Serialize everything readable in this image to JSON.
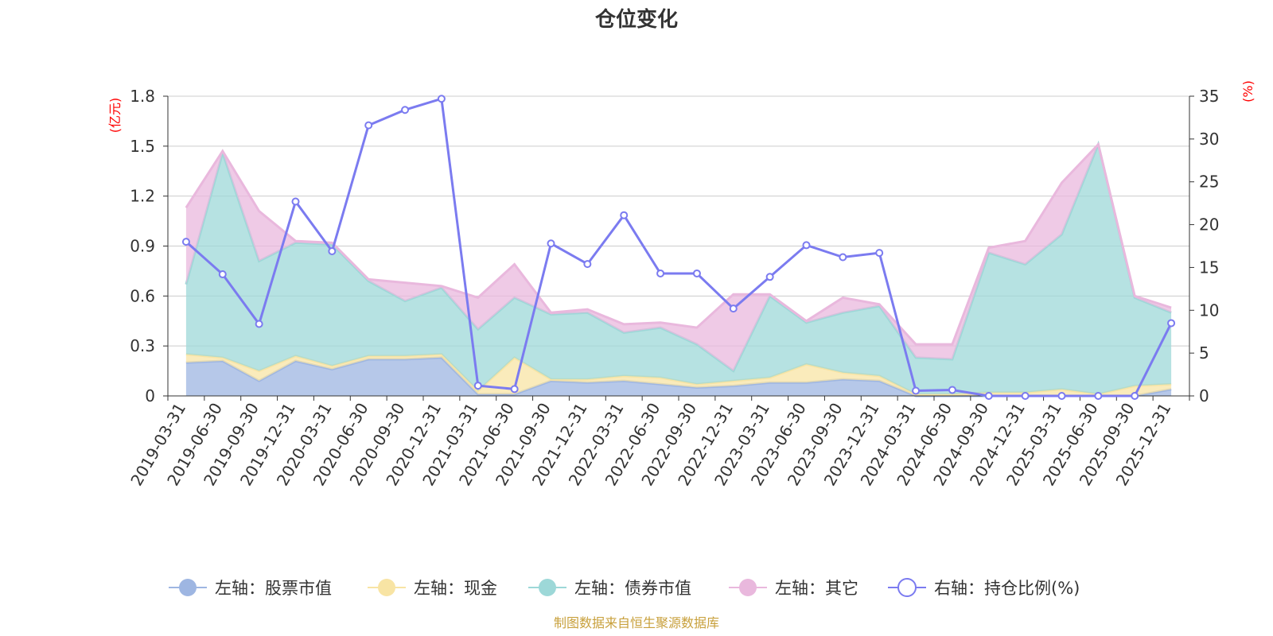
{
  "chart_data": {
    "type": "area",
    "title": "仓位变化",
    "left_axis_unit": "(亿元)",
    "right_axis_unit": "(%)",
    "left_ylim": [
      0,
      1.8
    ],
    "left_ticks": [
      "0",
      "0.3",
      "0.6",
      "0.9",
      "1.2",
      "1.5",
      "1.8"
    ],
    "right_ylim": [
      0,
      35
    ],
    "right_ticks": [
      "0",
      "5",
      "10",
      "15",
      "20",
      "25",
      "30",
      "35"
    ],
    "categories": [
      "2019-03-31",
      "2019-06-30",
      "2019-09-30",
      "2019-12-31",
      "2020-03-31",
      "2020-06-30",
      "2020-09-30",
      "2020-12-31",
      "2021-03-31",
      "2021-06-30",
      "2021-09-30",
      "2021-12-31",
      "2022-03-31",
      "2022-06-30",
      "2022-09-30",
      "2022-12-31",
      "2023-03-31",
      "2023-06-30",
      "2023-09-30",
      "2023-12-31",
      "2024-03-31",
      "2024-06-30",
      "2024-09-30",
      "2024-12-31",
      "2025-03-31",
      "2025-06-30",
      "2025-09-30",
      "2025-12-31"
    ],
    "series": [
      {
        "name": "左轴：股票市值",
        "axis": "left",
        "stacked": true,
        "color": "#9eb6e2",
        "values": [
          0.2,
          0.21,
          0.09,
          0.21,
          0.16,
          0.22,
          0.22,
          0.23,
          0.01,
          0.01,
          0.09,
          0.08,
          0.09,
          0.07,
          0.05,
          0.06,
          0.08,
          0.08,
          0.1,
          0.09,
          0.0,
          0.0,
          0.0,
          0.0,
          0.0,
          0.0,
          0.0,
          0.04
        ]
      },
      {
        "name": "左轴：现金",
        "axis": "left",
        "stacked": true,
        "color": "#f8e4a4",
        "values": [
          0.05,
          0.02,
          0.06,
          0.03,
          0.02,
          0.02,
          0.02,
          0.02,
          0.02,
          0.22,
          0.01,
          0.02,
          0.03,
          0.04,
          0.02,
          0.03,
          0.03,
          0.11,
          0.04,
          0.03,
          0.01,
          0.01,
          0.02,
          0.02,
          0.04,
          0.01,
          0.06,
          0.03
        ]
      },
      {
        "name": "左轴：债券市值",
        "axis": "left",
        "stacked": true,
        "color": "#9dd8d8",
        "values": [
          0.42,
          1.23,
          0.66,
          0.68,
          0.73,
          0.45,
          0.33,
          0.4,
          0.37,
          0.36,
          0.39,
          0.4,
          0.26,
          0.3,
          0.24,
          0.06,
          0.49,
          0.25,
          0.36,
          0.42,
          0.22,
          0.21,
          0.84,
          0.77,
          0.93,
          1.5,
          0.53,
          0.43
        ]
      },
      {
        "name": "左轴：其它",
        "axis": "left",
        "stacked": true,
        "color": "#e9b8dd",
        "values": [
          0.46,
          0.01,
          0.3,
          0.01,
          0.01,
          0.01,
          0.11,
          0.01,
          0.19,
          0.2,
          0.01,
          0.02,
          0.05,
          0.03,
          0.1,
          0.46,
          0.01,
          0.01,
          0.09,
          0.01,
          0.08,
          0.09,
          0.03,
          0.14,
          0.31,
          0.0,
          0.01,
          0.03
        ]
      },
      {
        "name": "右轴：持仓比例(%)",
        "axis": "right",
        "stacked": false,
        "color": "#7b7bf0",
        "values": [
          18.0,
          14.2,
          8.4,
          22.7,
          16.9,
          31.6,
          33.4,
          34.7,
          1.2,
          0.8,
          17.8,
          15.4,
          21.1,
          14.3,
          14.3,
          10.2,
          13.9,
          17.6,
          16.2,
          16.7,
          0.6,
          0.7,
          0.0,
          0.0,
          0.0,
          0.0,
          0.0,
          8.5
        ]
      }
    ],
    "source": "制图数据来自恒生聚源数据库",
    "legend_position": "bottom"
  }
}
